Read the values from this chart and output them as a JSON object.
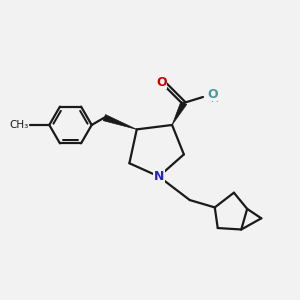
{
  "background_color": "#f2f2f2",
  "line_color": "#1a1a1a",
  "N_color": "#2222cc",
  "O_color": "#cc0000",
  "OH_color": "#4a9a9a",
  "figsize": [
    3.0,
    3.0
  ],
  "dpi": 100,
  "xlim": [
    0,
    10
  ],
  "ylim": [
    0,
    10
  ]
}
